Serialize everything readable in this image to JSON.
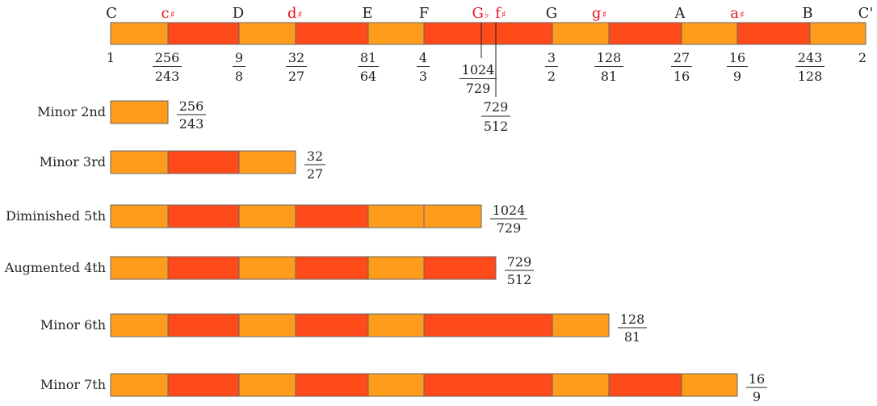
{
  "colors": {
    "natural": "#FF9C1C",
    "sharp": "#FF4A1A",
    "stroke": "#666666",
    "sharp_text": "#E8141C",
    "text": "#222222"
  },
  "scale": {
    "notes": [
      {
        "name": "C",
        "accidental": "",
        "sharp": false
      },
      {
        "name": "c",
        "accidental": "♯",
        "sharp": true
      },
      {
        "name": "D",
        "accidental": "",
        "sharp": false
      },
      {
        "name": "d",
        "accidental": "♯",
        "sharp": true
      },
      {
        "name": "E",
        "accidental": "",
        "sharp": false
      },
      {
        "name": "F",
        "accidental": "",
        "sharp": false
      },
      {
        "name": "G",
        "accidental": "♭",
        "sharp": true
      },
      {
        "name": "f",
        "accidental": "♯",
        "sharp": true
      },
      {
        "name": "G",
        "accidental": "",
        "sharp": false
      },
      {
        "name": "g",
        "accidental": "♯",
        "sharp": true
      },
      {
        "name": "A",
        "accidental": "",
        "sharp": false
      },
      {
        "name": "a",
        "accidental": "♯",
        "sharp": true
      },
      {
        "name": "B",
        "accidental": "",
        "sharp": false
      },
      {
        "name": "C'",
        "accidental": "",
        "sharp": false
      }
    ],
    "segment_colors": [
      "natural",
      "sharp",
      "natural",
      "sharp",
      "natural",
      "natural",
      "sharp",
      "sharp",
      "natural",
      "sharp",
      "natural",
      "sharp",
      "natural",
      "natural"
    ],
    "ratios": [
      {
        "text": "1"
      },
      {
        "num": "256",
        "den": "243"
      },
      {
        "num": "9",
        "den": "8"
      },
      {
        "num": "32",
        "den": "27"
      },
      {
        "num": "81",
        "den": "64"
      },
      {
        "num": "4",
        "den": "3"
      },
      {
        "num": "1024",
        "den": "729"
      },
      {
        "num": "729",
        "den": "512"
      },
      {
        "num": "3",
        "den": "2"
      },
      {
        "num": "128",
        "den": "81"
      },
      {
        "num": "27",
        "den": "16"
      },
      {
        "num": "16",
        "den": "9"
      },
      {
        "num": "243",
        "den": "128"
      },
      {
        "text": "2"
      }
    ]
  },
  "intervals": [
    {
      "label": "Minor 2nd",
      "ratio": {
        "num": "256",
        "den": "243"
      },
      "segments": [
        "natural"
      ]
    },
    {
      "label": "Minor 3rd",
      "ratio": {
        "num": "32",
        "den": "27"
      },
      "segments": [
        "natural",
        "sharp",
        "natural"
      ]
    },
    {
      "label": "Diminished 5th",
      "ratio": {
        "num": "1024",
        "den": "729"
      },
      "segments": [
        "natural",
        "sharp",
        "natural",
        "sharp",
        "natural",
        "natural"
      ]
    },
    {
      "label": "Augmented 4th",
      "ratio": {
        "num": "729",
        "den": "512"
      },
      "segments": [
        "natural",
        "sharp",
        "natural",
        "sharp",
        "natural",
        "sharp"
      ]
    },
    {
      "label": "Minor 6th",
      "ratio": {
        "num": "128",
        "den": "81"
      },
      "segments": [
        "natural",
        "sharp",
        "natural",
        "sharp",
        "natural",
        "sharp",
        "natural"
      ]
    },
    {
      "label": "Minor 7th",
      "ratio": {
        "num": "16",
        "den": "9"
      },
      "segments": [
        "natural",
        "sharp",
        "natural",
        "sharp",
        "natural",
        "sharp",
        "natural",
        "sharp",
        "natural"
      ]
    }
  ]
}
